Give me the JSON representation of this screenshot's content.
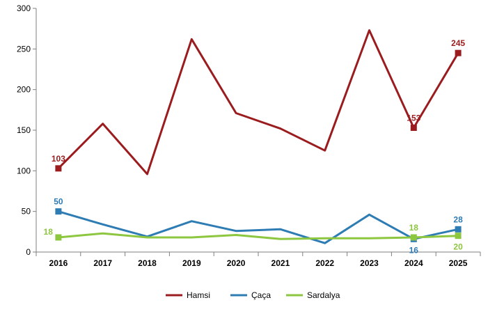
{
  "chart_data": {
    "type": "line",
    "title": "",
    "xlabel": "",
    "ylabel": "",
    "x": [
      "2016",
      "2017",
      "2018",
      "2019",
      "2020",
      "2021",
      "2022",
      "2023",
      "2024",
      "2025"
    ],
    "ylim": [
      0,
      300
    ],
    "yticks": [
      "0",
      "50",
      "100",
      "150",
      "200",
      "250",
      "300"
    ],
    "grid": false,
    "legend_position": "bottom",
    "series": [
      {
        "name": "Hamsi",
        "color": "#9b1c1f",
        "values": [
          103,
          158,
          96,
          262,
          171,
          152,
          125,
          273,
          153,
          245
        ],
        "labels": [
          {
            "index": 0,
            "text": "103",
            "pos": "above"
          },
          {
            "index": 8,
            "text": "153",
            "pos": "above"
          },
          {
            "index": 9,
            "text": "245",
            "pos": "above"
          }
        ]
      },
      {
        "name": "Çaça",
        "color": "#2e7cb4",
        "values": [
          50,
          34,
          19,
          38,
          26,
          28,
          11,
          46,
          16,
          28
        ],
        "labels": [
          {
            "index": 0,
            "text": "50",
            "pos": "above"
          },
          {
            "index": 8,
            "text": "16",
            "pos": "below"
          },
          {
            "index": 9,
            "text": "28",
            "pos": "above"
          }
        ]
      },
      {
        "name": "Sardalya",
        "color": "#8dc63f",
        "values": [
          18,
          23,
          18,
          18,
          21,
          16,
          17,
          17,
          18,
          20
        ],
        "labels": [
          {
            "index": 0,
            "text": "18",
            "pos": "left"
          },
          {
            "index": 8,
            "text": "18",
            "pos": "above"
          },
          {
            "index": 9,
            "text": "20",
            "pos": "below"
          }
        ]
      }
    ]
  }
}
